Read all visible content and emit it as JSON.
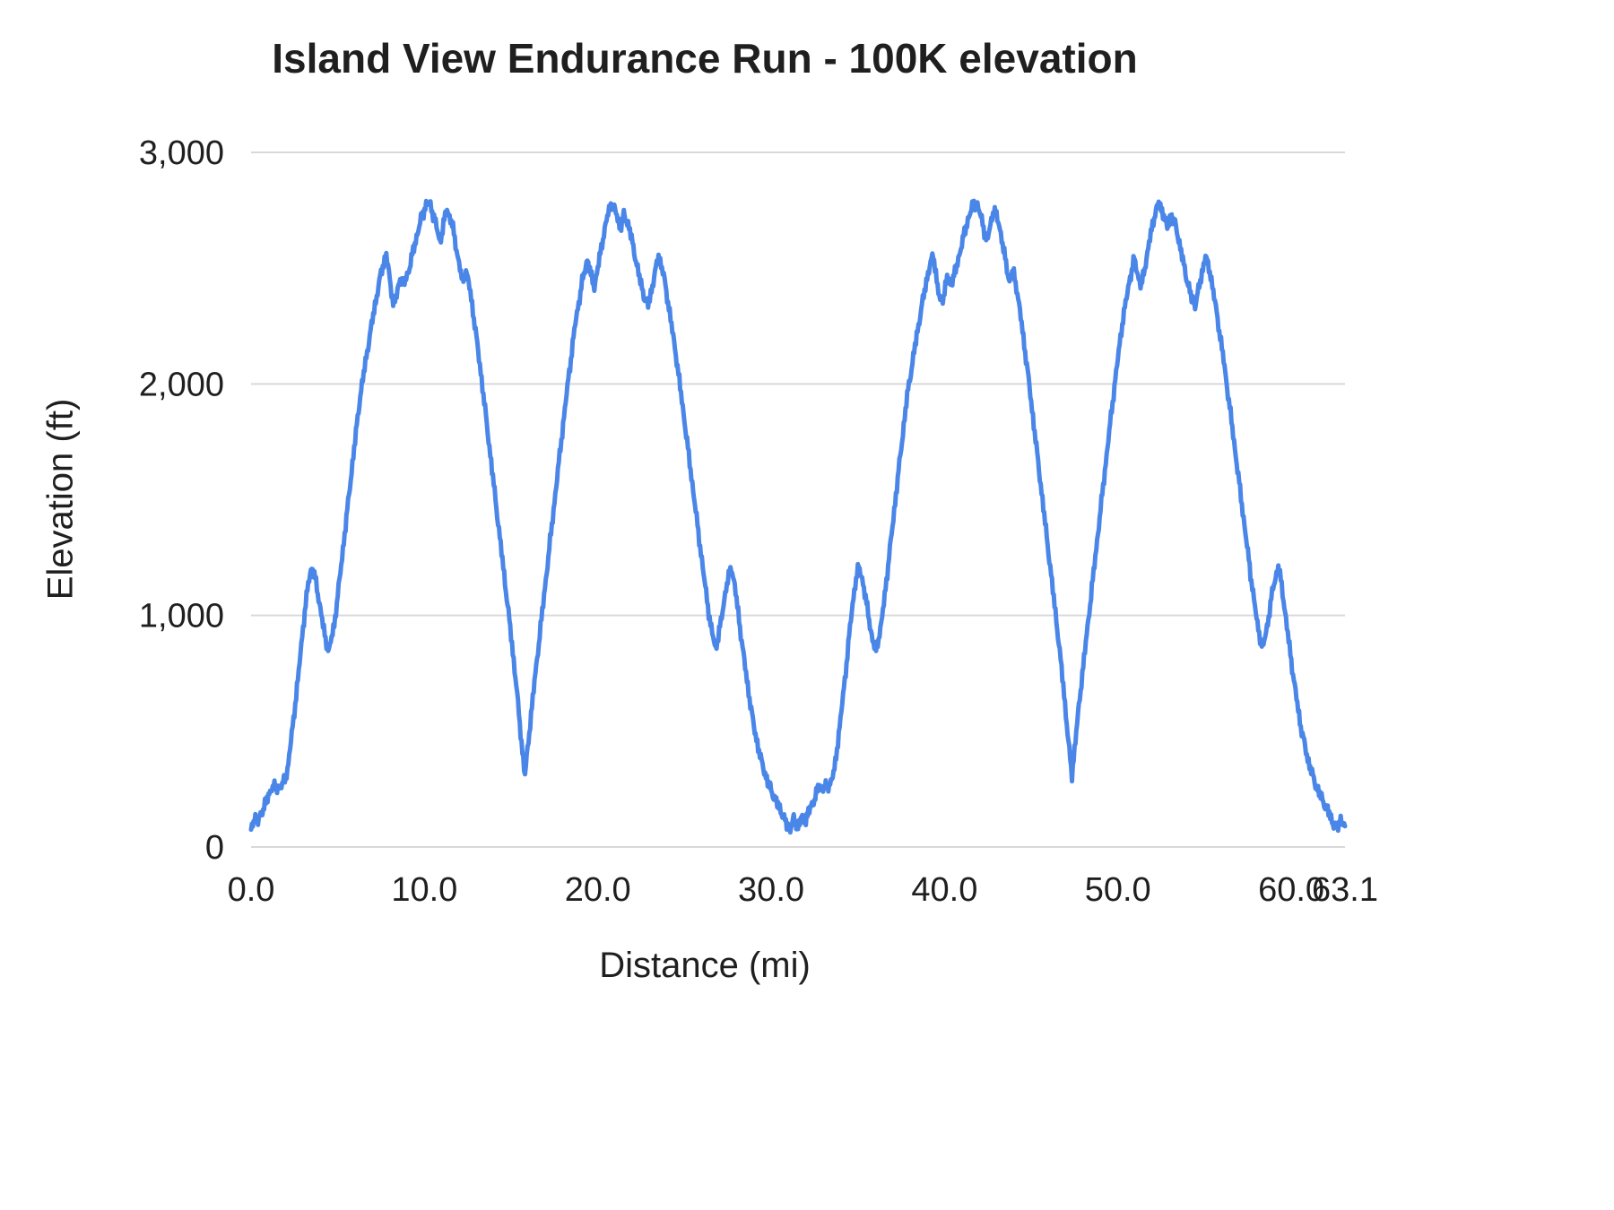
{
  "chart_data": {
    "type": "line",
    "title": "Island View Endurance Run - 100K elevation",
    "xlabel": "Distance (mi)",
    "ylabel": "Elevation (ft)",
    "xlim": [
      0,
      63.1
    ],
    "ylim": [
      0,
      3000
    ],
    "grid": "horizontal-only",
    "legend": "none",
    "background_color": "#ffffff",
    "gridline_color": "#d9d9d9",
    "line_color": "#4a86e8",
    "x_ticks": [
      {
        "value": 0,
        "label": "0.0"
      },
      {
        "value": 10,
        "label": "10.0"
      },
      {
        "value": 20,
        "label": "20.0"
      },
      {
        "value": 30,
        "label": "30.0"
      },
      {
        "value": 40,
        "label": "40.0"
      },
      {
        "value": 50,
        "label": "50.0"
      },
      {
        "value": 60,
        "label": "60.0"
      },
      {
        "value": 63.1,
        "label": "63.1"
      }
    ],
    "y_ticks": [
      {
        "value": 0,
        "label": "0"
      },
      {
        "value": 1000,
        "label": "1,000"
      },
      {
        "value": 2000,
        "label": "2,000"
      },
      {
        "value": 3000,
        "label": "3,000"
      }
    ],
    "series": [
      {
        "name": "Elevation",
        "points": [
          [
            0.0,
            75
          ],
          [
            0.2,
            130
          ],
          [
            0.4,
            110
          ],
          [
            0.6,
            150
          ],
          [
            0.9,
            200
          ],
          [
            1.2,
            260
          ],
          [
            1.5,
            255
          ],
          [
            1.8,
            265
          ],
          [
            2.1,
            330
          ],
          [
            2.4,
            520
          ],
          [
            2.7,
            720
          ],
          [
            3.0,
            950
          ],
          [
            3.3,
            1140
          ],
          [
            3.5,
            1210
          ],
          [
            3.7,
            1160
          ],
          [
            4.0,
            1030
          ],
          [
            4.3,
            890
          ],
          [
            4.5,
            850
          ],
          [
            4.8,
            960
          ],
          [
            5.1,
            1150
          ],
          [
            5.5,
            1420
          ],
          [
            5.9,
            1690
          ],
          [
            6.3,
            1950
          ],
          [
            6.7,
            2140
          ],
          [
            7.1,
            2320
          ],
          [
            7.5,
            2480
          ],
          [
            7.8,
            2560
          ],
          [
            8.0,
            2450
          ],
          [
            8.2,
            2350
          ],
          [
            8.4,
            2380
          ],
          [
            8.6,
            2460
          ],
          [
            8.8,
            2430
          ],
          [
            9.1,
            2490
          ],
          [
            9.4,
            2590
          ],
          [
            9.8,
            2710
          ],
          [
            10.1,
            2775
          ],
          [
            10.3,
            2780
          ],
          [
            10.6,
            2710
          ],
          [
            10.9,
            2610
          ],
          [
            11.1,
            2690
          ],
          [
            11.3,
            2755
          ],
          [
            11.6,
            2690
          ],
          [
            11.9,
            2560
          ],
          [
            12.2,
            2440
          ],
          [
            12.4,
            2490
          ],
          [
            12.6,
            2420
          ],
          [
            12.9,
            2260
          ],
          [
            13.3,
            2020
          ],
          [
            13.7,
            1760
          ],
          [
            14.1,
            1500
          ],
          [
            14.5,
            1240
          ],
          [
            14.9,
            980
          ],
          [
            15.3,
            700
          ],
          [
            15.6,
            450
          ],
          [
            15.8,
            310
          ],
          [
            16.0,
            460
          ],
          [
            16.3,
            680
          ],
          [
            16.7,
            950
          ],
          [
            17.1,
            1220
          ],
          [
            17.5,
            1490
          ],
          [
            17.9,
            1760
          ],
          [
            18.3,
            2020
          ],
          [
            18.7,
            2260
          ],
          [
            19.1,
            2440
          ],
          [
            19.4,
            2540
          ],
          [
            19.6,
            2470
          ],
          [
            19.8,
            2420
          ],
          [
            20.0,
            2500
          ],
          [
            20.3,
            2630
          ],
          [
            20.6,
            2740
          ],
          [
            20.8,
            2780
          ],
          [
            21.1,
            2730
          ],
          [
            21.3,
            2670
          ],
          [
            21.5,
            2730
          ],
          [
            21.8,
            2680
          ],
          [
            22.1,
            2570
          ],
          [
            22.4,
            2460
          ],
          [
            22.7,
            2370
          ],
          [
            22.9,
            2340
          ],
          [
            23.2,
            2440
          ],
          [
            23.5,
            2555
          ],
          [
            23.8,
            2470
          ],
          [
            24.1,
            2330
          ],
          [
            24.5,
            2130
          ],
          [
            24.9,
            1900
          ],
          [
            25.3,
            1660
          ],
          [
            25.7,
            1420
          ],
          [
            26.1,
            1180
          ],
          [
            26.5,
            960
          ],
          [
            26.8,
            855
          ],
          [
            27.1,
            970
          ],
          [
            27.4,
            1120
          ],
          [
            27.7,
            1210
          ],
          [
            27.9,
            1130
          ],
          [
            28.2,
            950
          ],
          [
            28.6,
            720
          ],
          [
            29.0,
            520
          ],
          [
            29.4,
            380
          ],
          [
            29.8,
            280
          ],
          [
            30.2,
            210
          ],
          [
            30.6,
            150
          ],
          [
            30.9,
            95
          ],
          [
            31.1,
            80
          ],
          [
            31.3,
            120
          ],
          [
            31.55,
            90
          ],
          [
            31.75,
            130
          ],
          [
            31.95,
            110
          ],
          [
            32.15,
            150
          ],
          [
            32.45,
            200
          ],
          [
            32.75,
            260
          ],
          [
            33.05,
            255
          ],
          [
            33.35,
            265
          ],
          [
            33.65,
            330
          ],
          [
            33.95,
            520
          ],
          [
            34.25,
            720
          ],
          [
            34.55,
            950
          ],
          [
            34.85,
            1140
          ],
          [
            35.05,
            1210
          ],
          [
            35.25,
            1160
          ],
          [
            35.55,
            1030
          ],
          [
            35.85,
            890
          ],
          [
            36.05,
            850
          ],
          [
            36.35,
            960
          ],
          [
            36.65,
            1150
          ],
          [
            37.05,
            1420
          ],
          [
            37.45,
            1690
          ],
          [
            37.85,
            1950
          ],
          [
            38.25,
            2140
          ],
          [
            38.65,
            2320
          ],
          [
            39.05,
            2480
          ],
          [
            39.35,
            2560
          ],
          [
            39.55,
            2450
          ],
          [
            39.75,
            2350
          ],
          [
            39.95,
            2380
          ],
          [
            40.15,
            2460
          ],
          [
            40.35,
            2430
          ],
          [
            40.65,
            2490
          ],
          [
            40.95,
            2590
          ],
          [
            41.35,
            2710
          ],
          [
            41.65,
            2775
          ],
          [
            41.85,
            2780
          ],
          [
            42.15,
            2710
          ],
          [
            42.45,
            2610
          ],
          [
            42.65,
            2690
          ],
          [
            42.85,
            2755
          ],
          [
            43.15,
            2690
          ],
          [
            43.45,
            2560
          ],
          [
            43.75,
            2440
          ],
          [
            43.95,
            2490
          ],
          [
            44.15,
            2420
          ],
          [
            44.45,
            2260
          ],
          [
            44.85,
            2020
          ],
          [
            45.25,
            1760
          ],
          [
            45.65,
            1500
          ],
          [
            46.05,
            1240
          ],
          [
            46.45,
            980
          ],
          [
            46.85,
            700
          ],
          [
            47.15,
            450
          ],
          [
            47.35,
            310
          ],
          [
            47.55,
            460
          ],
          [
            47.85,
            680
          ],
          [
            48.25,
            950
          ],
          [
            48.65,
            1220
          ],
          [
            49.05,
            1490
          ],
          [
            49.45,
            1760
          ],
          [
            49.85,
            2020
          ],
          [
            50.25,
            2260
          ],
          [
            50.65,
            2440
          ],
          [
            50.95,
            2540
          ],
          [
            51.15,
            2470
          ],
          [
            51.35,
            2420
          ],
          [
            51.55,
            2500
          ],
          [
            51.85,
            2630
          ],
          [
            52.15,
            2740
          ],
          [
            52.35,
            2780
          ],
          [
            52.65,
            2730
          ],
          [
            52.85,
            2670
          ],
          [
            53.05,
            2730
          ],
          [
            53.35,
            2680
          ],
          [
            53.65,
            2570
          ],
          [
            53.95,
            2460
          ],
          [
            54.25,
            2370
          ],
          [
            54.45,
            2340
          ],
          [
            54.75,
            2440
          ],
          [
            55.05,
            2555
          ],
          [
            55.35,
            2470
          ],
          [
            55.65,
            2330
          ],
          [
            56.05,
            2130
          ],
          [
            56.45,
            1900
          ],
          [
            56.85,
            1660
          ],
          [
            57.25,
            1420
          ],
          [
            57.65,
            1180
          ],
          [
            58.05,
            960
          ],
          [
            58.35,
            855
          ],
          [
            58.65,
            970
          ],
          [
            58.95,
            1120
          ],
          [
            59.25,
            1210
          ],
          [
            59.45,
            1130
          ],
          [
            59.75,
            950
          ],
          [
            60.15,
            720
          ],
          [
            60.55,
            520
          ],
          [
            60.95,
            380
          ],
          [
            61.35,
            280
          ],
          [
            61.75,
            210
          ],
          [
            62.15,
            150
          ],
          [
            62.45,
            95
          ],
          [
            62.65,
            80
          ],
          [
            62.85,
            120
          ],
          [
            63.1,
            90
          ]
        ]
      }
    ]
  }
}
